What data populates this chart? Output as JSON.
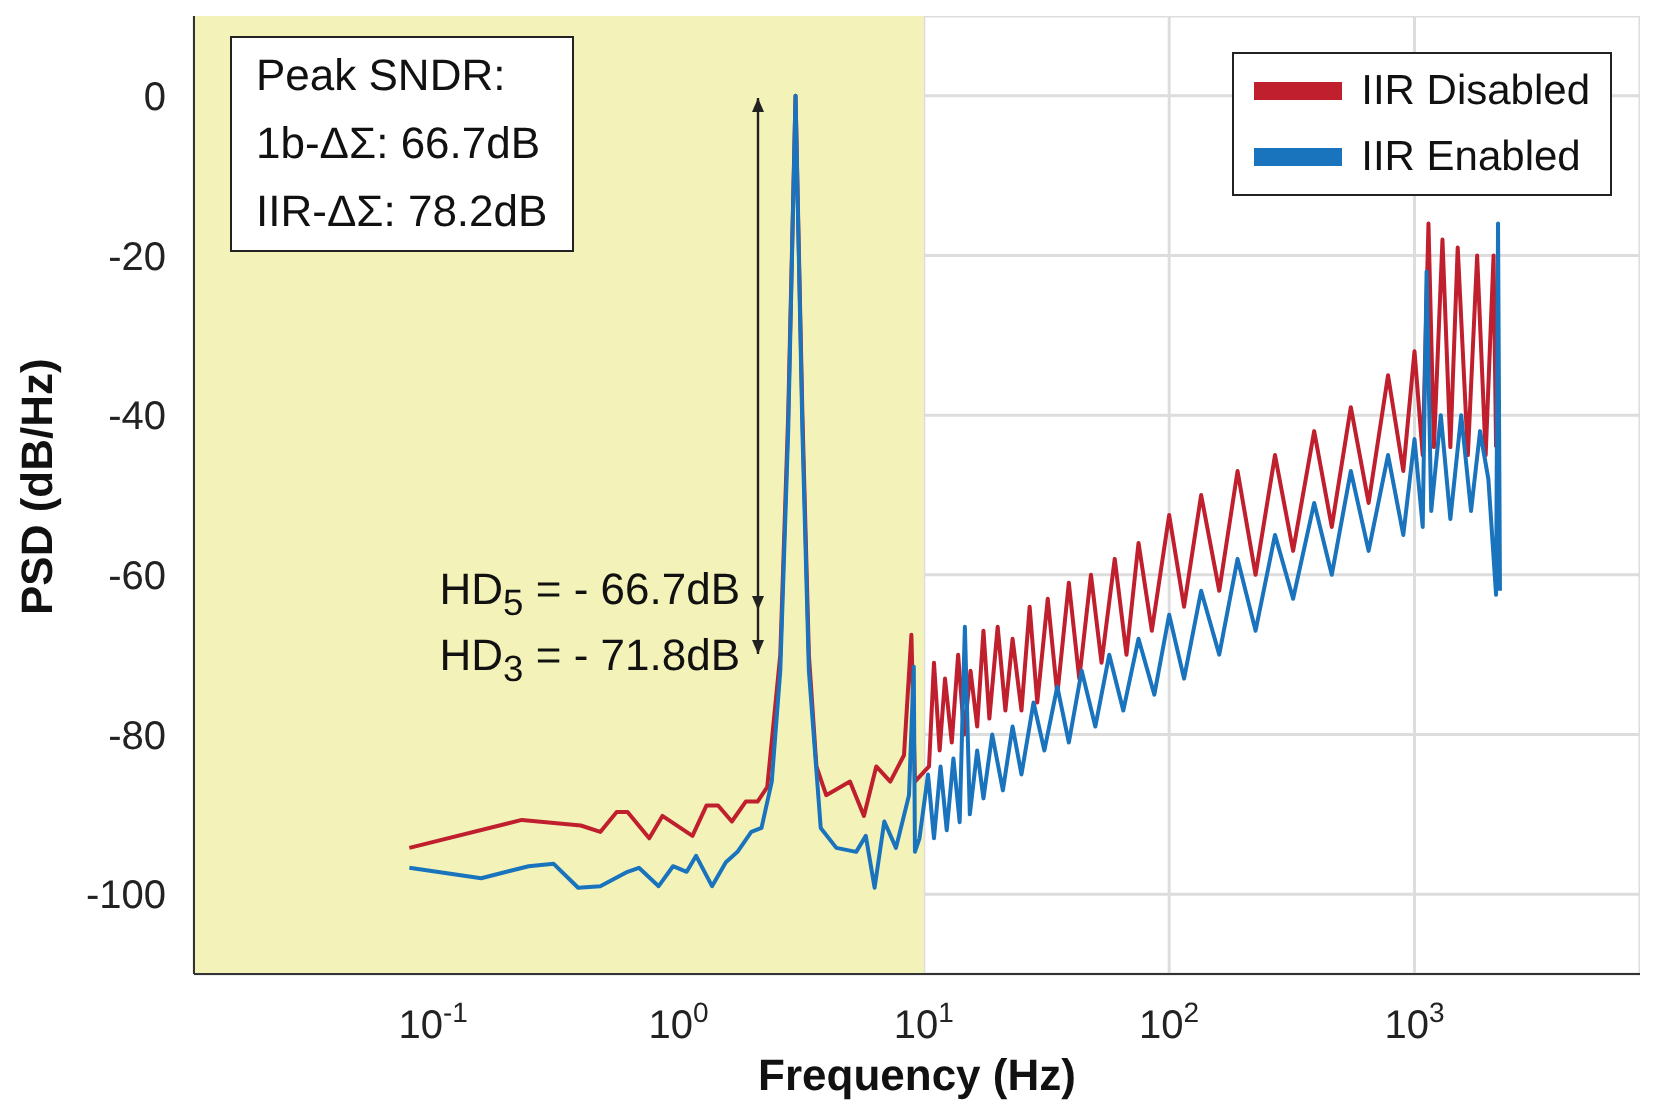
{
  "chart_data": {
    "type": "line",
    "xlabel": "Frequency (Hz)",
    "ylabel": "PSD (dB/Hz)",
    "log": "x",
    "xlim": [
      0.0106,
      8300
    ],
    "ylim": [
      -110,
      10
    ],
    "xticks": [
      {
        "value": 0.1,
        "label": "10$^{-1}$"
      },
      {
        "value": 1,
        "label": "10$^{0}$"
      },
      {
        "value": 10,
        "label": "10$^{1}$"
      },
      {
        "value": 100,
        "label": "10$^{2}$"
      },
      {
        "value": 1000,
        "label": "10$^{3}$"
      }
    ],
    "yticks": [
      -100,
      -80,
      -60,
      -40,
      -20,
      0
    ],
    "grid": true,
    "legend": "top right",
    "marker": "none",
    "line_style": "solid",
    "bands": [
      {
        "axis": "x",
        "from": 0.0106,
        "to": 10,
        "color": "#f3f3b9"
      }
    ],
    "annotations": [
      "Peak SNDR:\n1b-ΔΣ: 66.7dB\nIIR-ΔΣ: 78.2dB",
      "HD$_{5}$ = - 66.7dB",
      "HD$_{3}$ = - 71.8dB"
    ],
    "series": [
      {
        "name": "IIR Disabled",
        "color": "#c01f2e",
        "x": [
          0.08,
          0.23,
          0.4,
          0.48,
          0.56,
          0.62,
          0.76,
          0.86,
          1.14,
          1.3,
          1.45,
          1.65,
          1.88,
          2.1,
          2.3,
          2.6,
          2.8,
          3.0,
          3.2,
          3.4,
          3.65,
          4.0,
          5.0,
          5.7,
          6.4,
          7.3,
          8.3,
          8.9,
          9.2,
          10.5,
          11,
          11.6,
          12.2,
          13,
          13.8,
          14.6,
          15.5,
          16.5,
          17.5,
          18.5,
          20,
          21.5,
          23,
          25,
          27,
          29,
          32,
          35,
          39,
          43,
          48,
          53,
          60,
          67,
          75,
          85,
          100,
          115,
          135,
          160,
          190,
          225,
          270,
          320,
          390,
          460,
          550,
          650,
          780,
          900,
          1000,
          1080,
          1140,
          1200,
          1300,
          1400,
          1500,
          1650,
          1800,
          1950,
          2100,
          2150
        ],
        "values": [
          -94.2,
          -90.7,
          -91.4,
          -92.2,
          -89.7,
          -89.7,
          -93,
          -90.2,
          -92.7,
          -88.9,
          -88.9,
          -90.9,
          -88.4,
          -88.4,
          -86.6,
          -70,
          -40,
          0,
          -40,
          -70,
          -84,
          -87.6,
          -85.9,
          -90.2,
          -84,
          -85.9,
          -82.6,
          -67.5,
          -85.9,
          -84,
          -71,
          -82,
          -73,
          -81,
          -70,
          -80,
          -72,
          -79,
          -67,
          -78,
          -66.5,
          -77,
          -68,
          -77,
          -64,
          -76,
          -63,
          -75,
          -61,
          -73,
          -60,
          -71,
          -58,
          -70,
          -56,
          -67,
          -52.5,
          -64,
          -50,
          -62,
          -47,
          -60,
          -45,
          -57,
          -42,
          -54,
          -39,
          -51,
          -35,
          -47,
          -32,
          -45,
          -16,
          -44,
          -18,
          -44,
          -19,
          -45,
          -20,
          -45,
          -20,
          -44
        ]
      },
      {
        "name": "IIR Enabled",
        "color": "#1a73bd",
        "x": [
          0.08,
          0.157,
          0.245,
          0.31,
          0.39,
          0.48,
          0.62,
          0.69,
          0.83,
          0.95,
          1.08,
          1.18,
          1.37,
          1.56,
          1.74,
          1.98,
          2.18,
          2.4,
          2.6,
          2.8,
          3.0,
          3.2,
          3.4,
          3.8,
          4.4,
          5.3,
          5.8,
          6.3,
          6.9,
          7.7,
          8.7,
          9.1,
          9.2,
          9.6,
          10.4,
          11,
          11.7,
          12.4,
          13.2,
          14,
          14.7,
          15.4,
          16.5,
          17.5,
          19,
          21,
          23,
          25,
          28,
          31,
          35,
          39,
          44,
          50,
          57,
          65,
          75,
          87,
          100,
          115,
          135,
          160,
          190,
          225,
          270,
          320,
          390,
          460,
          550,
          650,
          780,
          900,
          1000,
          1080,
          1120,
          1170,
          1280,
          1400,
          1550,
          1700,
          1850,
          2000,
          2150,
          2190,
          2230
        ],
        "values": [
          -96.7,
          -98,
          -96.5,
          -96.2,
          -99.2,
          -99,
          -97.2,
          -96.7,
          -99,
          -96.5,
          -97.2,
          -95.2,
          -99,
          -96,
          -94.7,
          -92.2,
          -91.7,
          -85.9,
          -72,
          -42,
          0,
          -42,
          -72,
          -91.7,
          -94.2,
          -94.7,
          -92.7,
          -99.2,
          -90.9,
          -94.2,
          -87.6,
          -71.5,
          -94.7,
          -93,
          -85,
          -93,
          -84,
          -92,
          -83,
          -91,
          -66.5,
          -90,
          -82,
          -88,
          -80,
          -87,
          -79,
          -85,
          -76,
          -82,
          -74,
          -81,
          -72,
          -79,
          -70,
          -77,
          -68,
          -75,
          -65,
          -73,
          -62,
          -70,
          -58,
          -67,
          -55,
          -63,
          -51,
          -60,
          -47,
          -57,
          -45,
          -55,
          -43,
          -54,
          -22,
          -52,
          -40,
          -53,
          -40,
          -52,
          -42,
          -48,
          -62.5,
          -16,
          -62
        ]
      }
    ]
  }
}
